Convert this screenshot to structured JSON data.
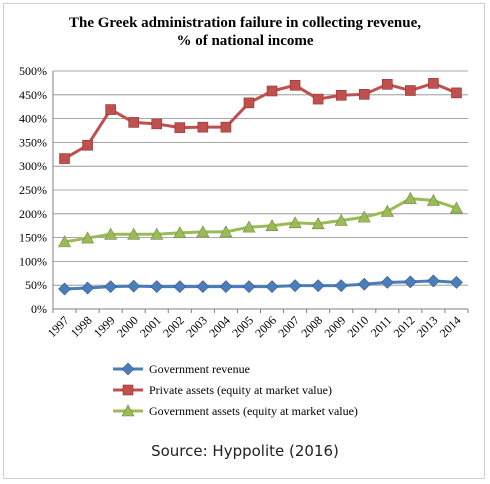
{
  "chart_data": {
    "type": "line",
    "title_lines": [
      "The Greek administration failure in collecting revenue,",
      "% of national income"
    ],
    "xlabel": "",
    "ylabel": "",
    "x": [
      "1997",
      "1998",
      "1999",
      "2000",
      "2001",
      "2002",
      "2003",
      "2004",
      "2005",
      "2006",
      "2007",
      "2008",
      "2009",
      "2010",
      "2011",
      "2012",
      "2013",
      "2014"
    ],
    "ylim": [
      0,
      500
    ],
    "yticks": [
      0,
      50,
      100,
      150,
      200,
      250,
      300,
      350,
      400,
      450,
      500
    ],
    "ytick_labels": [
      "0%",
      "50%",
      "100%",
      "150%",
      "200%",
      "250%",
      "300%",
      "350%",
      "400%",
      "450%",
      "500%"
    ],
    "grid": true,
    "legend_position": "bottom",
    "series": [
      {
        "name": "Government revenue",
        "color": "#4a7ebb",
        "marker": "diamond",
        "values": [
          42,
          44,
          47,
          48,
          47,
          47,
          47,
          47,
          47,
          47,
          49,
          49,
          49,
          52,
          56,
          57,
          59,
          56
        ]
      },
      {
        "name": "Private assets (equity at market value)",
        "color": "#c0504d",
        "marker": "square",
        "values": [
          316,
          344,
          419,
          392,
          389,
          381,
          382,
          382,
          433,
          458,
          470,
          441,
          449,
          451,
          472,
          459,
          474,
          454
        ]
      },
      {
        "name": "Government assets (equity at market value)",
        "color": "#9bbb59",
        "marker": "triangle",
        "values": [
          141,
          149,
          157,
          157,
          157,
          160,
          162,
          162,
          172,
          175,
          181,
          179,
          186,
          193,
          205,
          232,
          228,
          212
        ]
      }
    ]
  },
  "source_text": "Source: Hyppolite (2016)"
}
